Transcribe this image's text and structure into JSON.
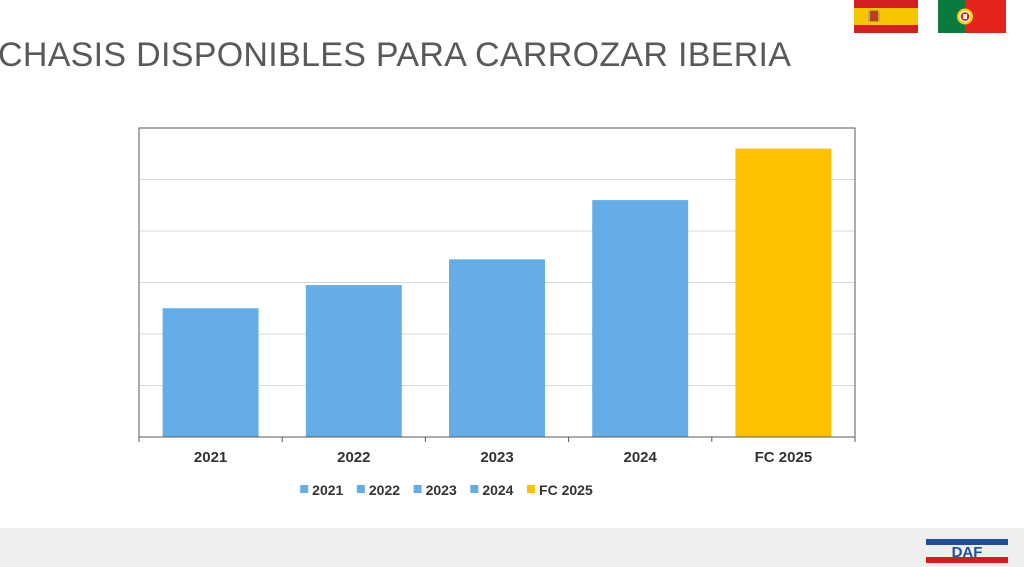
{
  "page": {
    "title": "CHASIS DISPONIBLES PARA CARROZAR IBERIA",
    "logo_text": "DAF"
  },
  "flags": [
    "spain-flag",
    "portugal-flag"
  ],
  "colors": {
    "series_blue": "#64ADE6",
    "forecast_yellow": "#FFC000",
    "gridline": "#D9D9D9",
    "plot_border": "#595959"
  },
  "chart_data": {
    "type": "bar",
    "categories": [
      "2021",
      "2022",
      "2023",
      "2024",
      "FC 2025"
    ],
    "values": [
      2.5,
      2.95,
      3.45,
      4.6,
      5.6
    ],
    "colors": [
      "#64ADE6",
      "#64ADE6",
      "#64ADE6",
      "#64ADE6",
      "#FFC000"
    ],
    "legend": [
      "2021",
      "2022",
      "2023",
      "2024",
      "FC 2025"
    ],
    "legend_position": "bottom",
    "grid": true,
    "ylim": [
      0,
      6
    ],
    "y_tick_labels_shown": false
  }
}
